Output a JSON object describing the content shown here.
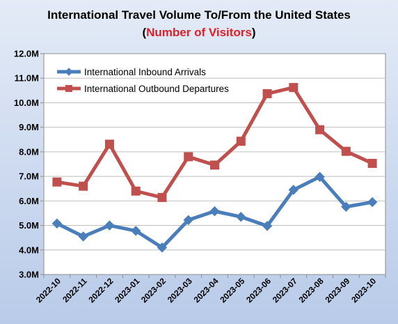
{
  "chart_data": {
    "type": "line",
    "title": "International Travel Volume To/From the United States",
    "subtitle": {
      "open": "(",
      "highlight": "Number of Visitors",
      "close": ")"
    },
    "x": [
      "2022-10",
      "2022-11",
      "2022-12",
      "2023-01",
      "2023-02",
      "2023-03",
      "2023-04",
      "2023-05",
      "2023-06",
      "2023-07",
      "2023-08",
      "2023-09",
      "2023-10"
    ],
    "series": [
      {
        "name": "International Inbound Arrivals",
        "color": "#4a7ebb",
        "marker": "diamond",
        "values": [
          5.08,
          4.55,
          5.0,
          4.78,
          4.1,
          5.22,
          5.58,
          5.35,
          4.98,
          6.45,
          6.98,
          5.76,
          5.95
        ]
      },
      {
        "name": "International Outbound Departures",
        "color": "#c0504d",
        "marker": "square",
        "values": [
          6.77,
          6.6,
          8.31,
          6.4,
          6.14,
          7.8,
          7.46,
          8.43,
          10.37,
          10.62,
          8.9,
          8.02,
          7.53
        ]
      }
    ],
    "ylim": [
      3.0,
      12.0
    ],
    "yticks": [
      3.0,
      4.0,
      5.0,
      6.0,
      7.0,
      8.0,
      9.0,
      10.0,
      11.0,
      12.0
    ],
    "ytick_labels": [
      "3.0M",
      "4.0M",
      "5.0M",
      "6.0M",
      "7.0M",
      "8.0M",
      "9.0M",
      "10.0M",
      "11.0M",
      "12.0M"
    ],
    "grid": true,
    "legend": "top-left"
  }
}
